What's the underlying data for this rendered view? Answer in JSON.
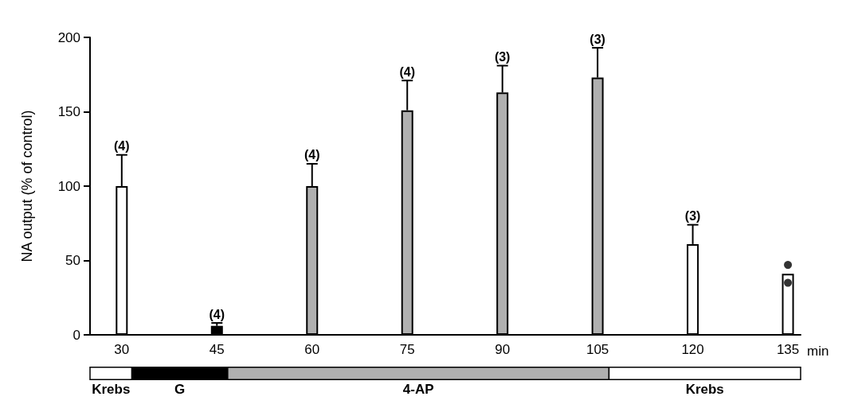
{
  "chart_data": [
    {
      "type": "bar",
      "xlabel": "min",
      "ylabel": "NA output (% of control)",
      "x": [
        30,
        45,
        60,
        75,
        90,
        105,
        120,
        135
      ],
      "xlim": [
        25,
        137
      ],
      "xticks": [
        30,
        45,
        60,
        75,
        90,
        105,
        120,
        135
      ],
      "ylim": [
        0,
        200
      ],
      "yticks": [
        0,
        50,
        100,
        150,
        200
      ],
      "grid": false,
      "series": [
        {
          "type": "bar",
          "colors": [
            "#ffffff",
            "#000000",
            "#b0b0b0",
            "#b0b0b0",
            "#b0b0b0",
            "#b0b0b0",
            "#ffffff",
            "#ffffff"
          ],
          "values": [
            100,
            6,
            100,
            151,
            163,
            173,
            61,
            41
          ],
          "errors": [
            21,
            2,
            15,
            20,
            18,
            20,
            13,
            null
          ]
        },
        {
          "type": "scatter",
          "x": [
            135,
            135
          ],
          "values": [
            47,
            35
          ],
          "color": "#000000",
          "marker": "circle"
        }
      ],
      "annotations": [
        {
          "text": "(4)",
          "x": 30,
          "y": 121
        },
        {
          "text": "(4)",
          "x": 45,
          "y": 8
        },
        {
          "text": "(4)",
          "x": 60,
          "y": 115
        },
        {
          "text": "(4)",
          "x": 75,
          "y": 171
        },
        {
          "text": "(3)",
          "x": 90,
          "y": 181
        },
        {
          "text": "(3)",
          "x": 105,
          "y": 193
        },
        {
          "text": "(3)",
          "x": 120,
          "y": 74
        }
      ]
    },
    {
      "type": "bar",
      "orientation": "horizontal",
      "categories": [
        null
      ],
      "xlim": [
        25,
        137
      ],
      "tick_labels": false,
      "series": [
        {
          "name": "Krebs",
          "color": "#ffffff",
          "values": [
            6.6
          ],
          "base": [
            25
          ]
        },
        {
          "name": "G",
          "color": "#000000",
          "values": [
            15.1
          ],
          "base": [
            31.6
          ]
        },
        {
          "name": "4-AP",
          "color": "#b0b0b0",
          "values": [
            60.1
          ],
          "base": [
            46.7
          ]
        },
        {
          "name": "Krebs",
          "color": "#ffffff",
          "values": [
            30.2
          ],
          "base": [
            106.8
          ]
        }
      ]
    }
  ]
}
